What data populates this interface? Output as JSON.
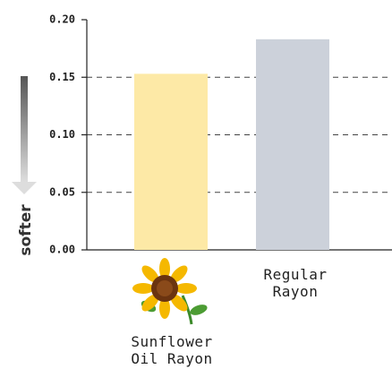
{
  "chart_data": {
    "type": "bar",
    "categories": [
      "Sunflower Oil Rayon",
      "Regular Rayon"
    ],
    "values": [
      0.153,
      0.183
    ],
    "colors": [
      "#fde9a6",
      "#ccd1da"
    ],
    "ylim": [
      0,
      0.2
    ],
    "yticks": [
      {
        "value": 0,
        "label": "0.00"
      },
      {
        "value": 0.05,
        "label": "0.05"
      },
      {
        "value": 0.1,
        "label": "0.10"
      },
      {
        "value": 0.15,
        "label": "0.15"
      },
      {
        "value": 0.2,
        "label": "0.20"
      }
    ],
    "grid": true,
    "annotation": "softer"
  }
}
